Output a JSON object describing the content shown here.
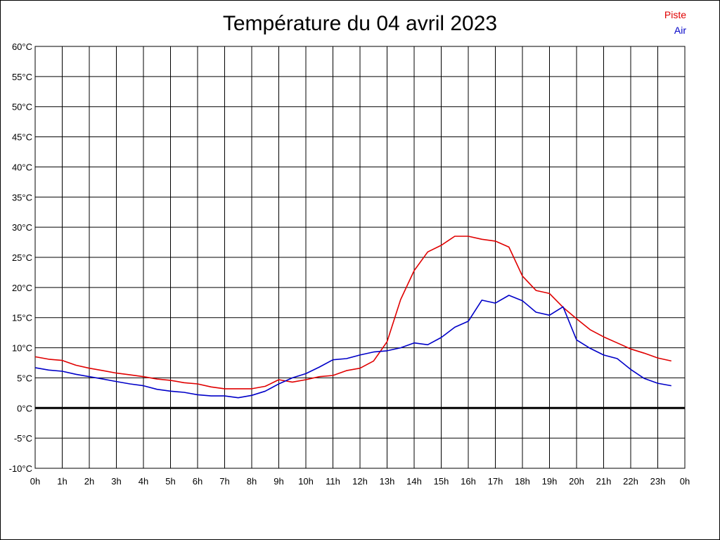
{
  "chart_data": {
    "type": "line",
    "title": "Température du 04 avril 2023",
    "xlabel": "",
    "ylabel": "",
    "ylim": [
      -10,
      60
    ],
    "xlim": [
      0,
      24
    ],
    "grid": true,
    "legend_position": "top-right",
    "y_ticks": [
      "60°C",
      "55°C",
      "50°C",
      "45°C",
      "40°C",
      "35°C",
      "30°C",
      "25°C",
      "20°C",
      "15°C",
      "10°C",
      "5°C",
      "0°C",
      "-5°C",
      "-10°C"
    ],
    "x_ticks": [
      "0h",
      "1h",
      "2h",
      "3h",
      "4h",
      "5h",
      "6h",
      "7h",
      "8h",
      "9h",
      "10h",
      "11h",
      "12h",
      "13h",
      "14h",
      "15h",
      "16h",
      "17h",
      "18h",
      "19h",
      "20h",
      "21h",
      "22h",
      "23h",
      "0h"
    ],
    "x": [
      0,
      0.5,
      1,
      1.5,
      2,
      2.5,
      3,
      3.5,
      4,
      4.5,
      5,
      5.5,
      6,
      6.5,
      7,
      7.5,
      8,
      8.5,
      9,
      9.5,
      10,
      10.5,
      11,
      11.5,
      12,
      12.5,
      13,
      13.5,
      14,
      14.5,
      15,
      15.5,
      16,
      16.5,
      17,
      17.5,
      18,
      18.5,
      19,
      19.5,
      20,
      20.5,
      21,
      21.5,
      22,
      22.5,
      23,
      23.5
    ],
    "series": [
      {
        "name": "Piste",
        "color": "#e00000",
        "values": [
          8.5,
          8.1,
          7.9,
          7.1,
          6.6,
          6.2,
          5.8,
          5.5,
          5.2,
          4.8,
          4.6,
          4.2,
          4.0,
          3.5,
          3.2,
          3.2,
          3.2,
          3.6,
          4.7,
          4.3,
          4.7,
          5.2,
          5.4,
          6.2,
          6.6,
          7.8,
          11.0,
          18.0,
          22.8,
          25.9,
          27.0,
          28.5,
          28.5,
          28.0,
          27.7,
          26.7,
          21.9,
          19.5,
          19.0,
          16.7,
          14.8,
          13.0,
          11.8,
          10.8,
          9.8,
          9.1,
          8.3,
          7.8
        ]
      },
      {
        "name": "Air",
        "color": "#0000c8",
        "values": [
          6.7,
          6.3,
          6.1,
          5.6,
          5.2,
          4.8,
          4.4,
          4.0,
          3.7,
          3.1,
          2.8,
          2.6,
          2.2,
          2.0,
          2.0,
          1.7,
          2.1,
          2.8,
          4.0,
          5.0,
          5.7,
          6.8,
          8.0,
          8.2,
          8.8,
          9.3,
          9.5,
          10.0,
          10.8,
          10.5,
          11.7,
          13.4,
          14.4,
          17.9,
          17.4,
          18.7,
          17.8,
          15.9,
          15.4,
          16.8,
          11.3,
          9.9,
          8.8,
          8.2,
          6.4,
          4.9,
          4.1,
          3.7
        ]
      }
    ]
  }
}
